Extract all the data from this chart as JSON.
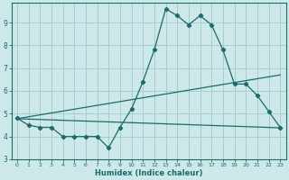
{
  "xlabel": "Humidex (Indice chaleur)",
  "bg_color": "#cce8e8",
  "grid_color": "#aacccc",
  "line_color": "#1a6b6b",
  "x_main": [
    0,
    1,
    2,
    3,
    4,
    5,
    6,
    7,
    8,
    9,
    10,
    11,
    12,
    13,
    14,
    15,
    16,
    17,
    18,
    19,
    20,
    21,
    22,
    23
  ],
  "y_main": [
    4.8,
    4.5,
    4.4,
    4.4,
    4.0,
    4.0,
    4.0,
    4.0,
    3.5,
    4.4,
    5.2,
    6.4,
    7.8,
    9.6,
    9.3,
    8.9,
    9.3,
    8.9,
    7.8,
    6.3,
    6.3,
    5.8,
    5.1,
    4.4
  ],
  "reg1_start": 4.78,
  "reg1_end": 4.38,
  "reg2_start": 4.78,
  "reg2_end": 6.7,
  "xlim": [
    -0.5,
    23.5
  ],
  "ylim": [
    3.0,
    9.85
  ],
  "yticks": [
    3,
    4,
    5,
    6,
    7,
    8,
    9
  ],
  "xticks": [
    0,
    1,
    2,
    3,
    4,
    5,
    6,
    7,
    8,
    9,
    10,
    11,
    12,
    13,
    14,
    15,
    16,
    17,
    18,
    19,
    20,
    21,
    22,
    23
  ]
}
